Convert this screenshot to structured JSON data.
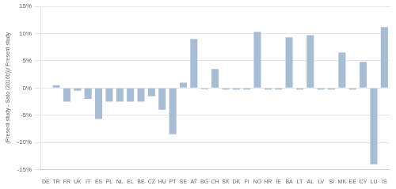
{
  "chart_data": {
    "type": "bar",
    "categories": [
      "DE",
      "TR",
      "FR",
      "UK",
      "IT",
      "ES",
      "PL",
      "NL",
      "EL",
      "BE",
      "CZ",
      "HU",
      "PT",
      "SE",
      "AT",
      "BG",
      "CH",
      "SK",
      "DK",
      "FI",
      "NO",
      "HR",
      "IE",
      "BA",
      "LT",
      "AL",
      "LV",
      "SI",
      "MK",
      "EE",
      "CY",
      "LU",
      "IS"
    ],
    "values": [
      0.0,
      0.5,
      -2.5,
      -0.5,
      -2.0,
      -5.7,
      -2.5,
      -2.5,
      -2.5,
      -2.5,
      -1.5,
      -4.0,
      -8.5,
      1.0,
      9.0,
      -0.2,
      3.5,
      -0.3,
      -0.3,
      -0.3,
      10.3,
      -0.3,
      -0.3,
      9.3,
      -0.3,
      9.7,
      -0.3,
      -0.3,
      6.5,
      -0.3,
      4.8,
      -14.0,
      11.2
    ],
    "color": "#a8bcd4",
    "ylabel": "(Present study - Sato (2016b))/ Present study",
    "ylim": [
      -15,
      15
    ],
    "yticks": [
      {
        "value": -15,
        "label": "-15%"
      },
      {
        "value": -10,
        "label": "-10%"
      },
      {
        "value": -5,
        "label": "-5%"
      },
      {
        "value": 0,
        "label": "0%"
      },
      {
        "value": 5,
        "label": "5%"
      },
      {
        "value": 10,
        "label": "10%"
      },
      {
        "value": 15,
        "label": "15%"
      }
    ],
    "grid": true
  }
}
